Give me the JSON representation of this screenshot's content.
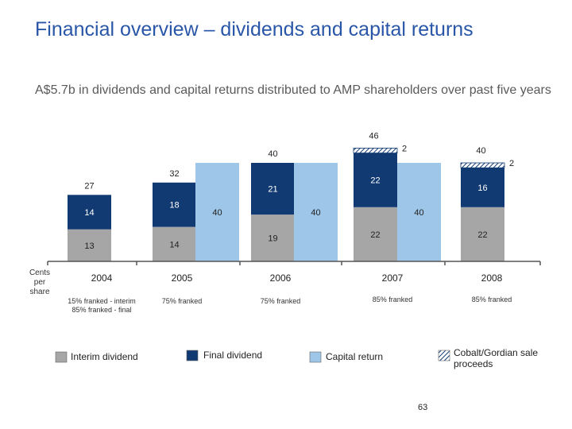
{
  "slide": {
    "title": "Financial overview – dividends and capital returns",
    "subtitle": "A$5.7b in dividends and capital returns distributed to AMP shareholders over past five years",
    "page_number": "63"
  },
  "colors": {
    "interim": "#a6a6a6",
    "final": "#123a72",
    "capital": "#9ec6e8",
    "cobalt_hatch": "#123a72",
    "axis": "#555555"
  },
  "chart_data": {
    "type": "bar",
    "unit_label": "Cents per share",
    "categories": [
      "2004",
      "2005",
      "2006",
      "2007",
      "2008"
    ],
    "franking": [
      [
        "15% franked - interim",
        "85% franked - final"
      ],
      [
        "75% franked"
      ],
      [
        "75% franked"
      ],
      [
        "85% franked"
      ],
      [
        "85% franked"
      ]
    ],
    "legend": [
      {
        "key": "interim",
        "label": "Interim dividend"
      },
      {
        "key": "final",
        "label": "Final dividend"
      },
      {
        "key": "capital",
        "label": "Capital return"
      },
      {
        "key": "cobalt",
        "label": "Cobalt/Gordian sale proceeds"
      }
    ],
    "dividend_bars": [
      {
        "year": "2004",
        "interim": 13,
        "final": 14,
        "cobalt": 0,
        "total": 27,
        "interim_label": "13",
        "final_label": "14",
        "cobalt_label": "",
        "total_label": "27"
      },
      {
        "year": "2005",
        "interim": 14,
        "final": 18,
        "cobalt": 0,
        "total": 32,
        "interim_label": "14",
        "final_label": "18",
        "cobalt_label": "",
        "total_label": "32"
      },
      {
        "year": "2006",
        "interim": 19,
        "final": 21,
        "cobalt": 0,
        "total": 40,
        "interim_label": "19",
        "final_label": "21",
        "cobalt_label": "",
        "total_label": "40"
      },
      {
        "year": "2007",
        "interim": 22,
        "final": 22,
        "cobalt": 2,
        "total": 46,
        "interim_label": "22",
        "final_label": "22",
        "cobalt_label": "2",
        "total_label": "46"
      },
      {
        "year": "2008",
        "interim": 22,
        "final": 16,
        "cobalt": 2,
        "total": 40,
        "interim_label": "22",
        "final_label": "16",
        "cobalt_label": "2",
        "total_label": "40"
      }
    ],
    "capital_bars": [
      {
        "year": "2005",
        "value": 40,
        "label": "40"
      },
      {
        "year": "2006",
        "value": 40,
        "label": "40"
      },
      {
        "year": "2007",
        "value": 40,
        "label": "40"
      }
    ]
  }
}
